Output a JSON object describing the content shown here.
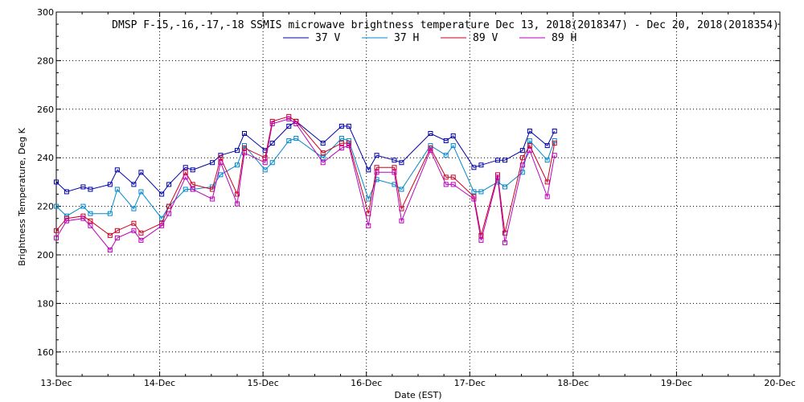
{
  "chart_data": {
    "type": "line",
    "title": "DMSP F-15,-16,-17,-18 SSMIS microwave brightness temperature Dec 13, 2018(2018347) - Dec 20, 2018(2018354)",
    "xlabel": "Date (EST)",
    "ylabel": "Brightness Temperature, Deg K",
    "xlim": [
      0,
      7
    ],
    "ylim": [
      150,
      300
    ],
    "x_ticks": [
      {
        "value": 0,
        "label": "13-Dec"
      },
      {
        "value": 1,
        "label": "14-Dec"
      },
      {
        "value": 2,
        "label": "15-Dec"
      },
      {
        "value": 3,
        "label": "16-Dec"
      },
      {
        "value": 4,
        "label": "17-Dec"
      },
      {
        "value": 5,
        "label": "18-Dec"
      },
      {
        "value": 6,
        "label": "19-Dec"
      },
      {
        "value": 7,
        "label": "20-Dec"
      }
    ],
    "y_ticks": [
      160,
      180,
      200,
      220,
      240,
      260,
      280,
      300
    ],
    "grid": true,
    "series": [
      {
        "name": "37 V",
        "color": "#0000aa",
        "points": [
          [
            0,
            230
          ],
          [
            0.1,
            226
          ],
          [
            0.26,
            228
          ],
          [
            0.33,
            227
          ],
          [
            0.52,
            229
          ],
          [
            0.59,
            235
          ],
          [
            0.75,
            229
          ],
          [
            0.82,
            234
          ],
          [
            1.02,
            225
          ],
          [
            1.09,
            229
          ],
          [
            1.25,
            236
          ],
          [
            1.32,
            235
          ],
          [
            1.51,
            238
          ],
          [
            1.59,
            241
          ],
          [
            1.75,
            243
          ],
          [
            1.82,
            250
          ],
          [
            2.02,
            243
          ],
          [
            2.09,
            246
          ],
          [
            2.25,
            253
          ],
          [
            2.32,
            255
          ],
          [
            2.58,
            246
          ],
          [
            2.76,
            253
          ],
          [
            2.83,
            253
          ],
          [
            3.02,
            235
          ],
          [
            3.1,
            241
          ],
          [
            3.27,
            239
          ],
          [
            3.34,
            238
          ],
          [
            3.62,
            250
          ],
          [
            3.77,
            247
          ],
          [
            3.84,
            249
          ],
          [
            4.04,
            236
          ],
          [
            4.11,
            237
          ],
          [
            4.27,
            239
          ],
          [
            4.34,
            239
          ],
          [
            4.51,
            243
          ],
          [
            4.58,
            251
          ],
          [
            4.75,
            245
          ],
          [
            4.82,
            251
          ]
        ]
      },
      {
        "name": "37 H",
        "color": "#0088cc",
        "points": [
          [
            0,
            220
          ],
          [
            0.1,
            216
          ],
          [
            0.26,
            220
          ],
          [
            0.33,
            217
          ],
          [
            0.52,
            217
          ],
          [
            0.59,
            227
          ],
          [
            0.75,
            219
          ],
          [
            0.82,
            226
          ],
          [
            1.02,
            215
          ],
          [
            1.09,
            220
          ],
          [
            1.25,
            227
          ],
          [
            1.32,
            227
          ],
          [
            1.51,
            228
          ],
          [
            1.59,
            233
          ],
          [
            1.75,
            237
          ],
          [
            1.82,
            245
          ],
          [
            2.02,
            235
          ],
          [
            2.09,
            238
          ],
          [
            2.25,
            247
          ],
          [
            2.32,
            248
          ],
          [
            2.58,
            240
          ],
          [
            2.76,
            248
          ],
          [
            2.83,
            247
          ],
          [
            3.02,
            223
          ],
          [
            3.1,
            231
          ],
          [
            3.27,
            229
          ],
          [
            3.34,
            227
          ],
          [
            3.62,
            245
          ],
          [
            3.77,
            241
          ],
          [
            3.84,
            245
          ],
          [
            4.04,
            226
          ],
          [
            4.11,
            226
          ],
          [
            4.27,
            230
          ],
          [
            4.34,
            228
          ],
          [
            4.51,
            234
          ],
          [
            4.58,
            247
          ],
          [
            4.75,
            239
          ],
          [
            4.82,
            247
          ]
        ]
      },
      {
        "name": "89 V",
        "color": "#cc0022",
        "points": [
          [
            0,
            210
          ],
          [
            0.1,
            215
          ],
          [
            0.26,
            216
          ],
          [
            0.33,
            214
          ],
          [
            0.52,
            208
          ],
          [
            0.59,
            210
          ],
          [
            0.75,
            213
          ],
          [
            0.82,
            209
          ],
          [
            1.02,
            213
          ],
          [
            1.09,
            220
          ],
          [
            1.25,
            234
          ],
          [
            1.32,
            229
          ],
          [
            1.51,
            227
          ],
          [
            1.59,
            240
          ],
          [
            1.75,
            225
          ],
          [
            1.82,
            244
          ],
          [
            2.02,
            240
          ],
          [
            2.09,
            255
          ],
          [
            2.25,
            257
          ],
          [
            2.32,
            255
          ],
          [
            2.58,
            242
          ],
          [
            2.76,
            246
          ],
          [
            2.83,
            246
          ],
          [
            3.02,
            217
          ],
          [
            3.1,
            236
          ],
          [
            3.27,
            236
          ],
          [
            3.34,
            219
          ],
          [
            3.62,
            244
          ],
          [
            3.77,
            232
          ],
          [
            3.84,
            232
          ],
          [
            4.04,
            224
          ],
          [
            4.11,
            208
          ],
          [
            4.27,
            233
          ],
          [
            4.34,
            209
          ],
          [
            4.51,
            240
          ],
          [
            4.58,
            245
          ],
          [
            4.75,
            230
          ],
          [
            4.82,
            246
          ]
        ]
      },
      {
        "name": "89 H",
        "color": "#bb00bb",
        "points": [
          [
            0,
            207
          ],
          [
            0.1,
            214
          ],
          [
            0.26,
            215
          ],
          [
            0.33,
            212
          ],
          [
            0.52,
            202
          ],
          [
            0.59,
            207
          ],
          [
            0.75,
            210
          ],
          [
            0.82,
            206
          ],
          [
            1.02,
            212
          ],
          [
            1.09,
            217
          ],
          [
            1.25,
            232
          ],
          [
            1.32,
            227
          ],
          [
            1.51,
            223
          ],
          [
            1.59,
            238
          ],
          [
            1.75,
            221
          ],
          [
            1.82,
            242
          ],
          [
            2.02,
            238
          ],
          [
            2.09,
            254
          ],
          [
            2.25,
            256
          ],
          [
            2.32,
            254
          ],
          [
            2.58,
            238
          ],
          [
            2.76,
            244
          ],
          [
            2.83,
            245
          ],
          [
            3.02,
            212
          ],
          [
            3.1,
            234
          ],
          [
            3.27,
            234
          ],
          [
            3.34,
            214
          ],
          [
            3.62,
            243
          ],
          [
            3.77,
            229
          ],
          [
            3.84,
            229
          ],
          [
            4.04,
            223
          ],
          [
            4.11,
            206
          ],
          [
            4.27,
            232
          ],
          [
            4.34,
            205
          ],
          [
            4.51,
            237
          ],
          [
            4.58,
            243
          ],
          [
            4.75,
            224
          ],
          [
            4.82,
            241
          ]
        ]
      }
    ]
  }
}
